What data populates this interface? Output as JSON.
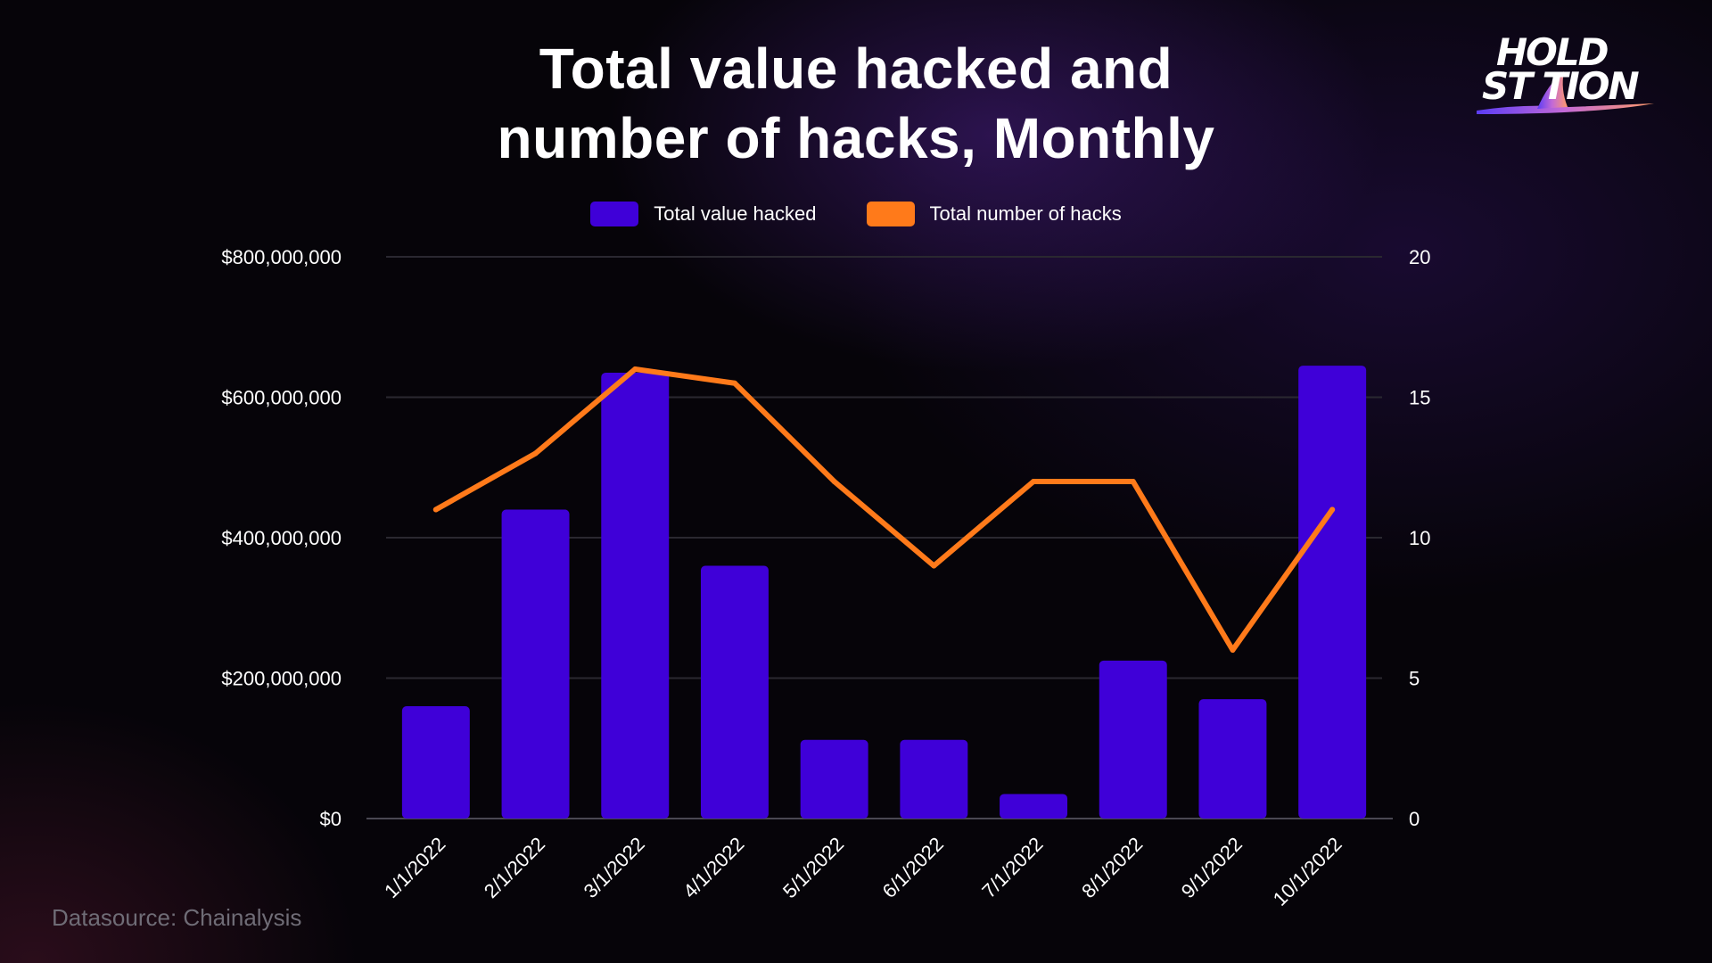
{
  "chart_data": {
    "type": "bar",
    "title_lines": [
      "Total value hacked and",
      "number of hacks, Monthly"
    ],
    "categories": [
      "1/1/2022",
      "2/1/2022",
      "3/1/2022",
      "4/1/2022",
      "5/1/2022",
      "6/1/2022",
      "7/1/2022",
      "8/1/2022",
      "9/1/2022",
      "10/1/2022"
    ],
    "series": [
      {
        "name": "Total value hacked",
        "type": "bar",
        "axis": "left",
        "color": "#3f00d8",
        "values": [
          160000000,
          440000000,
          635000000,
          360000000,
          112000000,
          112000000,
          35000000,
          225000000,
          170000000,
          645000000
        ]
      },
      {
        "name": "Total number of hacks",
        "type": "line",
        "axis": "right",
        "color": "#ff7a1a",
        "values": [
          11,
          13,
          16,
          15.5,
          12,
          9,
          12,
          12,
          6,
          11
        ]
      }
    ],
    "y_left": {
      "ylim": [
        0,
        800000000
      ],
      "ticks": [
        0,
        200000000,
        400000000,
        600000000,
        800000000
      ],
      "tick_labels": [
        "$0",
        "$200,000,000",
        "$400,000,000",
        "$600,000,000",
        "$800,000,000"
      ]
    },
    "y_right": {
      "ylim": [
        0,
        20
      ],
      "ticks": [
        0,
        5,
        10,
        15,
        20
      ],
      "tick_labels": [
        "0",
        "5",
        "10",
        "15",
        "20"
      ]
    },
    "grid": true,
    "legend_position": "top-center"
  },
  "logo": {
    "line1": "HOLD",
    "line2": "ST TION"
  },
  "source_note": "Datasource: Chainalysis",
  "colors": {
    "background": "#07050b",
    "bar": "#3f00d8",
    "line": "#ff7a1a",
    "grid": "#2a2830",
    "muted_text": "#6f6c76"
  }
}
